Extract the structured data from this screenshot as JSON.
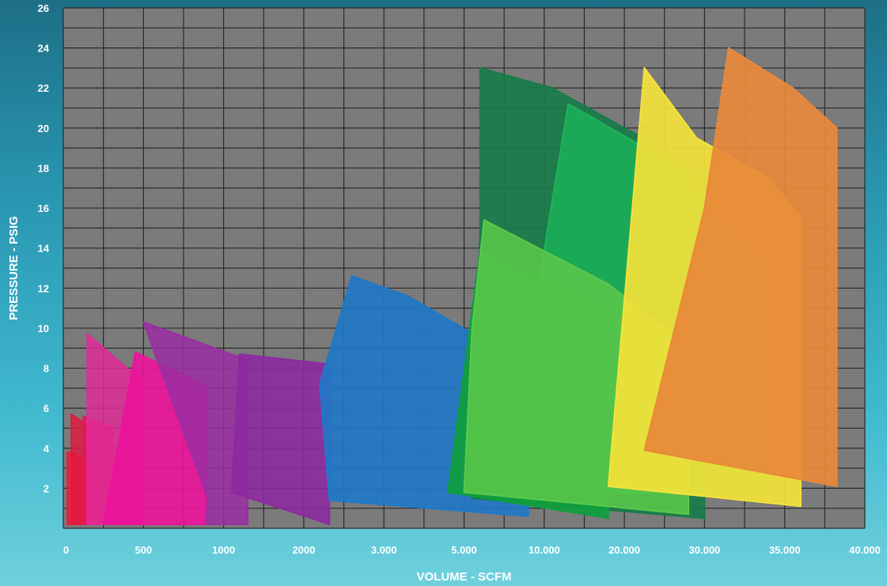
{
  "chart_data": {
    "type": "area",
    "xlabel": "VOLUME - SCFM",
    "ylabel": "PRESSURE - PSIG",
    "x_tick_labels": [
      "0",
      "500",
      "1000",
      "2000",
      "3.000",
      "5.000",
      "10.000",
      "20.000",
      "30.000",
      "35.000",
      "40.000"
    ],
    "y_ticks": [
      2,
      4,
      6,
      8,
      10,
      12,
      14,
      16,
      18,
      20,
      22,
      24,
      26
    ],
    "ylim": [
      0,
      26
    ],
    "x_axis_scale": "categorical-index (tick labels placed at equal spacing, index 0-10)",
    "grid": true,
    "plot_background": "#7b7b7b",
    "series": [
      {
        "color": "#ea1d3a",
        "opacity": 0.85,
        "points": [
          [
            0.05,
            3.8
          ],
          [
            0.1,
            3.8
          ],
          [
            0.35,
            3.1
          ],
          [
            0.35,
            0.2
          ],
          [
            0.05,
            0.2
          ]
        ]
      },
      {
        "color": "#e3193f",
        "opacity": 0.8,
        "points": [
          [
            0.1,
            5.7
          ],
          [
            0.35,
            5.0
          ],
          [
            0.35,
            0.2
          ],
          [
            0.1,
            0.2
          ]
        ]
      },
      {
        "color": "#e2185a",
        "opacity": 0.8,
        "points": [
          [
            0.25,
            5.6
          ],
          [
            0.62,
            5.0
          ],
          [
            0.62,
            0.2
          ],
          [
            0.25,
            0.2
          ]
        ]
      },
      {
        "color": "#e32a9a",
        "opacity": 0.82,
        "points": [
          [
            0.3,
            9.7
          ],
          [
            1.0,
            7.3
          ],
          [
            1.0,
            0.2
          ],
          [
            0.3,
            0.2
          ]
        ]
      },
      {
        "color": "#ec139a",
        "opacity": 0.9,
        "points": [
          [
            0.9,
            8.8
          ],
          [
            1.78,
            7.1
          ],
          [
            1.78,
            0.2
          ],
          [
            0.5,
            0.2
          ]
        ]
      },
      {
        "color": "#9b2ea2",
        "opacity": 0.85,
        "points": [
          [
            1.0,
            10.3
          ],
          [
            2.3,
            8.4
          ],
          [
            2.3,
            0.2
          ],
          [
            1.78,
            0.2
          ],
          [
            1.8,
            1.5
          ]
        ]
      },
      {
        "color": "#8d29a1",
        "opacity": 0.88,
        "points": [
          [
            2.2,
            8.7
          ],
          [
            3.32,
            8.2
          ],
          [
            3.32,
            0.2
          ],
          [
            2.1,
            1.8
          ]
        ]
      },
      {
        "color": "#1f78c8",
        "opacity": 0.9,
        "points": [
          [
            3.6,
            12.6
          ],
          [
            4.3,
            11.6
          ],
          [
            5.8,
            8.1
          ],
          [
            5.8,
            0.6
          ],
          [
            3.32,
            1.4
          ],
          [
            3.2,
            7.2
          ]
        ]
      },
      {
        "color": "#177c48",
        "opacity": 0.9,
        "points": [
          [
            5.2,
            23.0
          ],
          [
            6.1,
            22.0
          ],
          [
            7.0,
            20.0
          ],
          [
            8.0,
            17.9
          ],
          [
            8.0,
            0.5
          ],
          [
            5.1,
            1.5
          ],
          [
            5.2,
            15.0
          ]
        ]
      },
      {
        "color": "#1bb45a",
        "opacity": 0.8,
        "points": [
          [
            6.3,
            21.2
          ],
          [
            7.7,
            18.0
          ],
          [
            8.8,
            13.3
          ],
          [
            8.8,
            1.7
          ],
          [
            5.5,
            1.8
          ]
        ]
      },
      {
        "color": "#0f9e3e",
        "opacity": 0.92,
        "points": [
          [
            5.2,
            13.9
          ],
          [
            6.8,
            10.8
          ],
          [
            6.8,
            0.5
          ],
          [
            4.8,
            1.8
          ]
        ]
      },
      {
        "color": "#5cc94a",
        "opacity": 0.85,
        "points": [
          [
            5.25,
            15.4
          ],
          [
            6.8,
            12.2
          ],
          [
            7.8,
            9.0
          ],
          [
            7.8,
            0.7
          ],
          [
            5.0,
            1.8
          ],
          [
            5.1,
            10.0
          ]
        ]
      },
      {
        "color": "#f4e23a",
        "opacity": 0.92,
        "points": [
          [
            7.25,
            23.0
          ],
          [
            7.9,
            19.5
          ],
          [
            8.8,
            17.5
          ],
          [
            9.2,
            15.5
          ],
          [
            9.2,
            1.1
          ],
          [
            6.8,
            2.1
          ]
        ]
      },
      {
        "color": "#e8893a",
        "opacity": 0.92,
        "points": [
          [
            8.3,
            24.0
          ],
          [
            9.1,
            22.0
          ],
          [
            9.65,
            20.0
          ],
          [
            9.65,
            2.1
          ],
          [
            7.25,
            3.9
          ],
          [
            8.0,
            16.0
          ]
        ]
      }
    ]
  }
}
